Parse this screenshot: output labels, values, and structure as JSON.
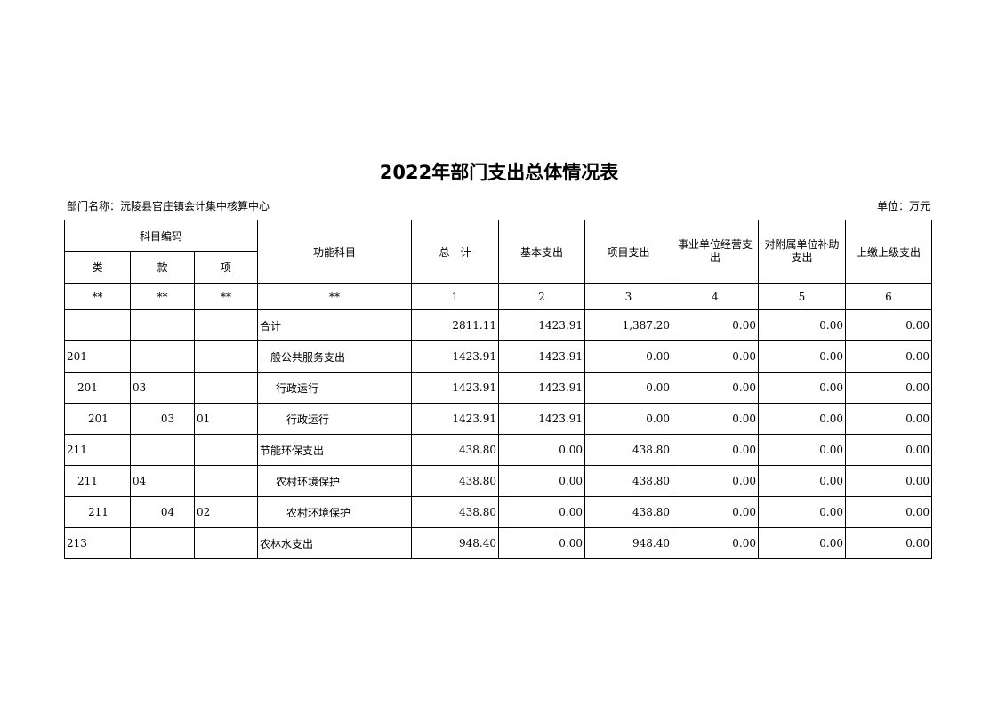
{
  "title": "2022年部门支出总体情况表",
  "department": "部门名称：沅陵县官庄镇会计集中核算中心",
  "unit": "单位：万元",
  "headers": {
    "code_group": "科目编码",
    "lei": "类",
    "kuan": "款",
    "xiang": "项",
    "function": "功能科目",
    "total": "总　计",
    "basic": "基本支出",
    "project": "项目支出",
    "business": "事业单位经营支出",
    "subsidy": "对附属单位补助支出",
    "upper": "上缴上级支出"
  },
  "index_row": [
    "**",
    "**",
    "**",
    "**",
    "1",
    "2",
    "3",
    "4",
    "5",
    "6"
  ],
  "rows": [
    {
      "lei": "",
      "kuan": "",
      "xiang": "",
      "name": "合计",
      "level": 0,
      "total": "2811.11",
      "basic": "1423.91",
      "project": "1,387.20",
      "business": "0.00",
      "subsidy": "0.00",
      "upper": "0.00"
    },
    {
      "lei": "201",
      "kuan": "",
      "xiang": "",
      "name": "一般公共服务支出",
      "level": 0,
      "total": "1423.91",
      "basic": "1423.91",
      "project": "0.00",
      "business": "0.00",
      "subsidy": "0.00",
      "upper": "0.00"
    },
    {
      "lei": "201",
      "kuan": "03",
      "xiang": "",
      "name": "行政运行",
      "level": 1,
      "total": "1423.91",
      "basic": "1423.91",
      "project": "0.00",
      "business": "0.00",
      "subsidy": "0.00",
      "upper": "0.00"
    },
    {
      "lei": "201",
      "kuan": "03",
      "xiang": "01",
      "name": "行政运行",
      "level": 2,
      "total": "1423.91",
      "basic": "1423.91",
      "project": "0.00",
      "business": "0.00",
      "subsidy": "0.00",
      "upper": "0.00"
    },
    {
      "lei": "211",
      "kuan": "",
      "xiang": "",
      "name": "节能环保支出",
      "level": 0,
      "total": "438.80",
      "basic": "0.00",
      "project": "438.80",
      "business": "0.00",
      "subsidy": "0.00",
      "upper": "0.00"
    },
    {
      "lei": "211",
      "kuan": "04",
      "xiang": "",
      "name": "农村环境保护",
      "level": 1,
      "total": "438.80",
      "basic": "0.00",
      "project": "438.80",
      "business": "0.00",
      "subsidy": "0.00",
      "upper": "0.00"
    },
    {
      "lei": "211",
      "kuan": "04",
      "xiang": "02",
      "name": "农村环境保护",
      "level": 2,
      "total": "438.80",
      "basic": "0.00",
      "project": "438.80",
      "business": "0.00",
      "subsidy": "0.00",
      "upper": "0.00"
    },
    {
      "lei": "213",
      "kuan": "",
      "xiang": "",
      "name": "农林水支出",
      "level": 0,
      "total": "948.40",
      "basic": "0.00",
      "project": "948.40",
      "business": "0.00",
      "subsidy": "0.00",
      "upper": "0.00"
    }
  ]
}
